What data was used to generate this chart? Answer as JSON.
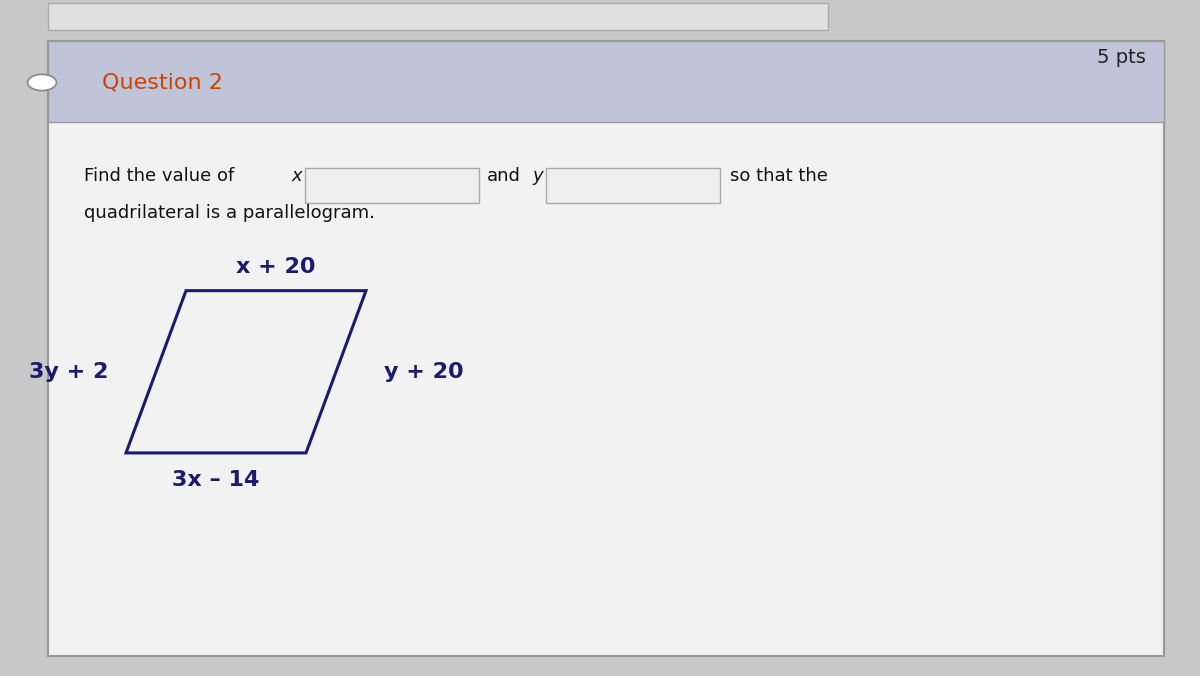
{
  "bg_outer": "#c8c8c8",
  "bg_top_strip_color": "#d8d8d8",
  "card_bg": "#f2f2f2",
  "card_border": "#999999",
  "header_bg": "#c0c4d8",
  "header_text": "Question 2",
  "header_pts": "5 pts",
  "header_text_color": "#cc4400",
  "pts_text_color": "#222222",
  "prompt_text_color": "#111111",
  "prompt_line2": "quadrilateral is a parallelogram.",
  "label_top": "x + 20",
  "label_right": "y + 20",
  "label_left": "3y + 2",
  "label_bottom": "3x – 14",
  "label_color": "#1a1a6e",
  "label_fontsize": 16,
  "header_fontsize": 16,
  "pts_fontsize": 14,
  "prompt_fontsize": 13,
  "input_box_color": "#eeeeee",
  "input_box_border": "#aaaaaa",
  "para_edge_color": "#1a1a6e",
  "para_face_color": "none",
  "para_linewidth": 2.2,
  "circle_color": "#555555"
}
